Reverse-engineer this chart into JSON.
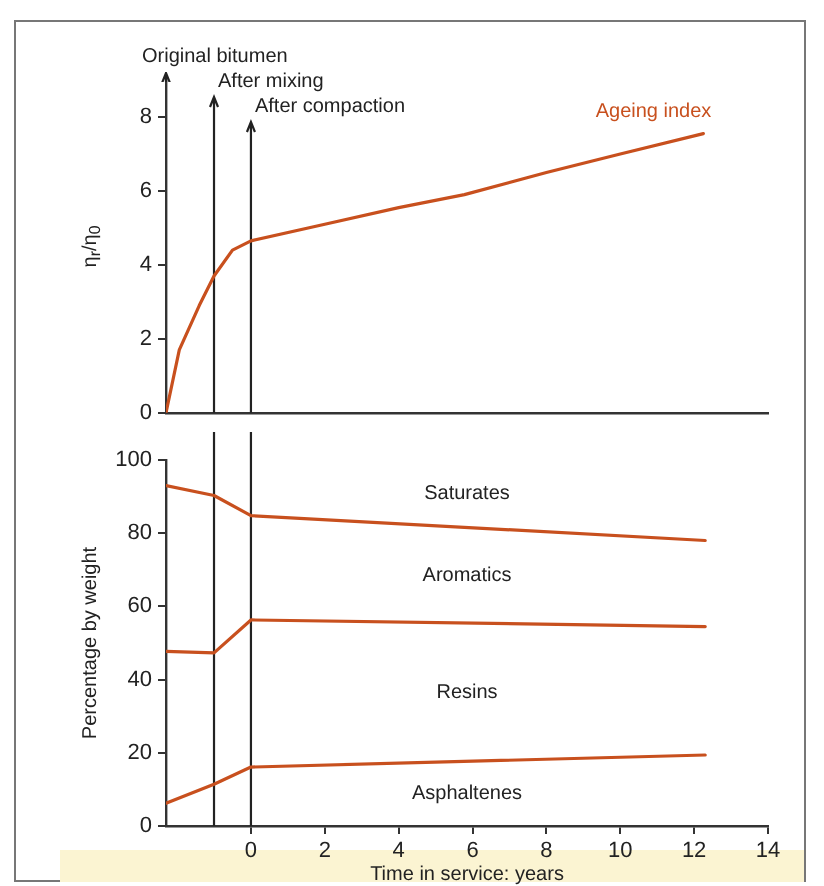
{
  "chart_data": [
    {
      "type": "line",
      "ylabel": "η$_{r}$/η$_{0}$",
      "xlim": [
        -2.3,
        14
      ],
      "ylim": [
        0,
        9
      ],
      "yticks": [
        0,
        2,
        4,
        6,
        8
      ],
      "tick_labels": "y",
      "grid": false,
      "legend": false,
      "marker": "none",
      "series": [
        {
          "name": "Ageing index",
          "color": "#c8501e",
          "x": [
            -2.3,
            -1.94,
            -1.4,
            -1.0,
            -0.5,
            0,
            2,
            4,
            5.78,
            8,
            10,
            12.25
          ],
          "values": [
            0,
            1.7,
            2.9,
            3.7,
            4.4,
            4.65,
            5.1,
            5.55,
            5.9,
            6.5,
            7.0,
            7.55
          ]
        }
      ],
      "ref_lines": [
        {
          "axis": "x",
          "value": -1,
          "label": "After mixing"
        },
        {
          "axis": "x",
          "value": 0,
          "label": "After compaction"
        }
      ],
      "annotations": [
        "Original bitumen"
      ]
    },
    {
      "type": "line",
      "xlabel": "Time in service: years",
      "ylabel": "Percentage by weight",
      "xlim": [
        -2.3,
        14
      ],
      "xticks": [
        0,
        2,
        4,
        6,
        8,
        10,
        12,
        14
      ],
      "ylim": [
        0,
        100
      ],
      "yticks": [
        0,
        20,
        40,
        60,
        80,
        100
      ],
      "grid": false,
      "legend": false,
      "marker": "none",
      "series": [
        {
          "color": "#c8501e",
          "x": [
            -2.3,
            -1,
            0,
            12.3
          ],
          "values": [
            93,
            90.3,
            84.8,
            78
          ]
        },
        {
          "color": "#c8501e",
          "x": [
            -2.3,
            -1,
            0,
            12.3
          ],
          "values": [
            47.7,
            47.3,
            56.3,
            54.5
          ]
        },
        {
          "color": "#c8501e",
          "x": [
            -2.3,
            -1,
            0,
            12.3
          ],
          "values": [
            6.2,
            11.4,
            16.1,
            19.4
          ]
        }
      ],
      "ref_lines": [
        {
          "axis": "x",
          "value": -1
        },
        {
          "axis": "x",
          "value": 0
        }
      ],
      "annotations": [
        "Saturates",
        "Aromatics",
        "Resins",
        "Asphaltenes"
      ]
    }
  ]
}
